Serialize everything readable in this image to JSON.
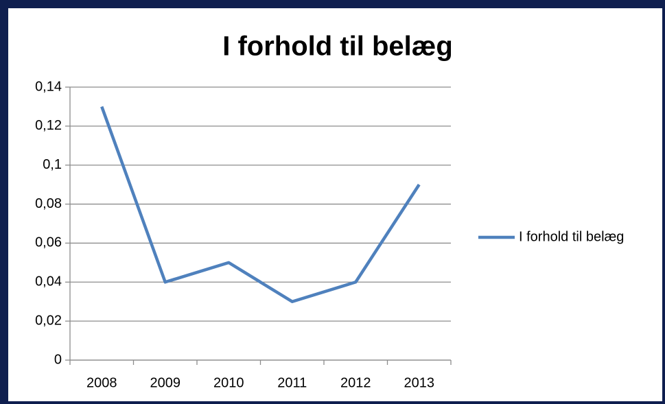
{
  "chart_data": {
    "type": "line",
    "title": "I forhold til belæg",
    "categories": [
      "2008",
      "2009",
      "2010",
      "2011",
      "2012",
      "2013"
    ],
    "series": [
      {
        "name": "I forhold til belæg",
        "color": "#4f81bd",
        "values": [
          0.13,
          0.04,
          0.05,
          0.03,
          0.04,
          0.09
        ]
      }
    ],
    "ylim": [
      0,
      0.14
    ],
    "yticks": [
      0,
      {
        "value": 0.02,
        "label": "0,02"
      },
      {
        "value": 0.04,
        "label": "0,04"
      },
      {
        "value": 0.06,
        "label": "0,06"
      },
      {
        "value": 0.08,
        "label": "0,08"
      },
      {
        "value": 0.1,
        "label": "0,1"
      },
      {
        "value": 0.12,
        "label": "0,12"
      },
      {
        "value": 0.14,
        "label": "0,14"
      }
    ],
    "grid": true,
    "legend": "right"
  }
}
